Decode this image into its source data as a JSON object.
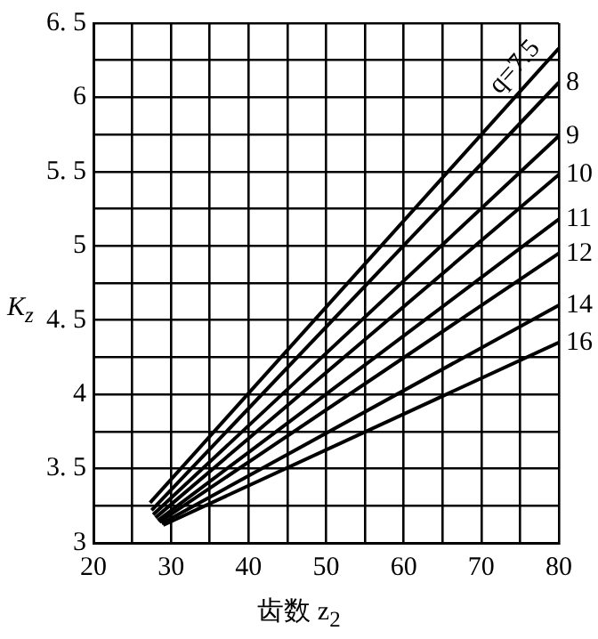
{
  "chart_data": {
    "type": "line",
    "xlabel": "齿数 z$_{2}$",
    "ylabel": "K$_{z}$",
    "xlim": [
      20,
      80
    ],
    "ylim": [
      3,
      6.5
    ],
    "xticks": [
      20,
      {
        "value": 25,
        "label": null
      },
      30,
      {
        "value": 35,
        "label": null
      },
      40,
      {
        "value": 45,
        "label": null
      },
      50,
      {
        "value": 55,
        "label": null
      },
      60,
      {
        "value": 65,
        "label": null
      },
      70,
      {
        "value": 75,
        "label": null
      },
      80
    ],
    "yticks": [
      3,
      {
        "value": 3.25,
        "label": null
      },
      {
        "value": 3.5,
        "label": "3. 5"
      },
      {
        "value": 3.75,
        "label": null
      },
      4,
      {
        "value": 4.25,
        "label": null
      },
      {
        "value": 4.5,
        "label": "4. 5"
      },
      {
        "value": 4.75,
        "label": null
      },
      5,
      {
        "value": 5.25,
        "label": null
      },
      {
        "value": 5.5,
        "label": "5. 5"
      },
      {
        "value": 5.75,
        "label": null
      },
      6,
      {
        "value": 6.25,
        "label": null
      },
      {
        "value": 6.5,
        "label": "6. 5"
      }
    ],
    "grid": true,
    "legend": false,
    "marker": "none",
    "line_style": "solid",
    "series": [
      {
        "name": "q=7.5",
        "color": "#000000",
        "x": [
          27.3,
          80
        ],
        "values": [
          3.27,
          6.33
        ]
      },
      {
        "name": "8",
        "color": "#000000",
        "x": [
          27.5,
          80
        ],
        "values": [
          3.22,
          6.1
        ]
      },
      {
        "name": "9",
        "color": "#000000",
        "x": [
          27.7,
          80
        ],
        "values": [
          3.19,
          5.74
        ]
      },
      {
        "name": "10",
        "color": "#000000",
        "x": [
          28,
          80
        ],
        "values": [
          3.17,
          5.48
        ]
      },
      {
        "name": "11",
        "color": "#000000",
        "x": [
          28.3,
          80
        ],
        "values": [
          3.15,
          5.18
        ]
      },
      {
        "name": "12",
        "color": "#000000",
        "x": [
          28.5,
          80
        ],
        "values": [
          3.14,
          4.95
        ]
      },
      {
        "name": "14",
        "color": "#000000",
        "x": [
          28.8,
          80
        ],
        "values": [
          3.13,
          4.6
        ]
      },
      {
        "name": "16",
        "color": "#000000",
        "x": [
          29,
          80
        ],
        "values": [
          3.12,
          4.35
        ]
      }
    ]
  }
}
